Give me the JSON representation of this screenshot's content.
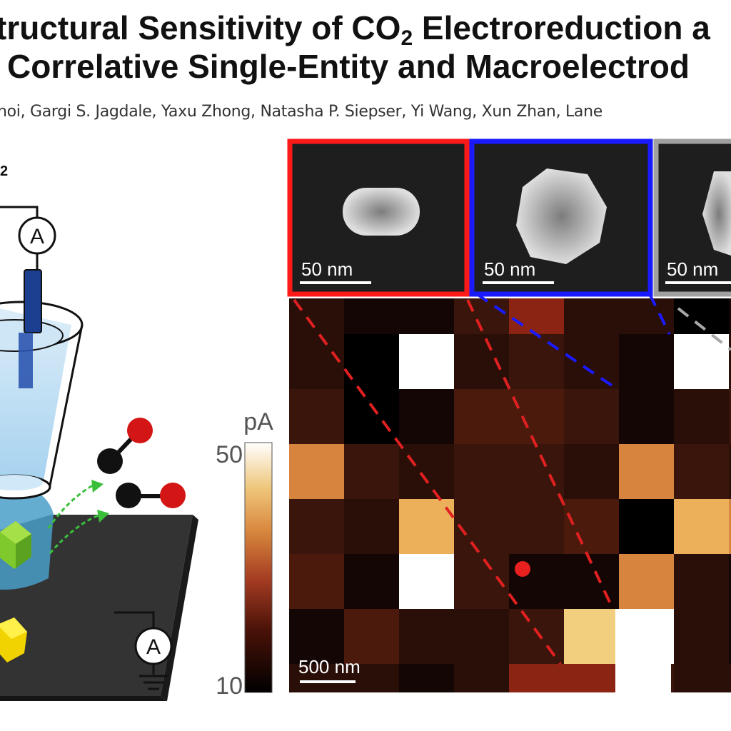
{
  "paper": {
    "title_line1_a": "tructural Sensitivity of CO",
    "title_line1_sub": "2",
    "title_line1_b": " Electroreduction a",
    "title_line2": " Correlative Single-Entity and Macroelectrod",
    "authors": "hoi, Gargi S. Jagdale, Yaxu Zhong, Natasha P. Siepser, Yi Wang, Xun Zhan, Lane"
  },
  "figure": {
    "left_label_fragment": "2",
    "ammeter_symbol": "A",
    "colorbar_unit": "pA",
    "colorbar_max": "50",
    "colorbar_min": "10",
    "sem_scalebar": "50 nm",
    "map_scalebar": "500 nm",
    "colors": {
      "sem_frame_1": "#ff1a1a",
      "sem_frame_2": "#1a1aff",
      "sem_frame_3": "#a0a0a0",
      "ink": "#111111"
    }
  }
}
